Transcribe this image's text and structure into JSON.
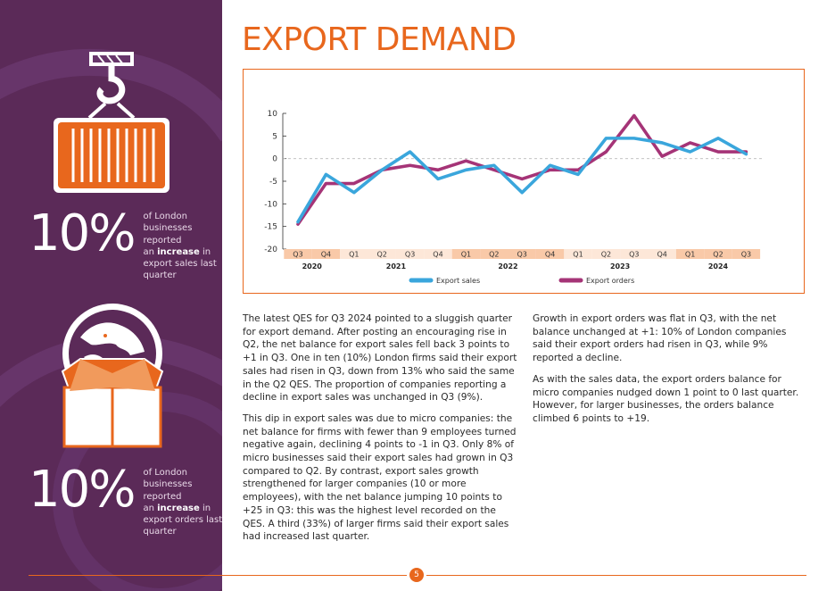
{
  "page": {
    "title": "EXPORT DEMAND",
    "page_number": "5"
  },
  "colors": {
    "accent": "#e8671d",
    "sidebar": "#5b2a58",
    "export_sales": "#3aa6dc",
    "export_orders": "#a53477"
  },
  "sidebar": {
    "stat1": {
      "value": "10%",
      "line1": "of London",
      "line2": "businesses reported",
      "line3_pre": "an ",
      "line3_bold": "increase",
      "line3_post": " in",
      "line4": "export sales last",
      "line5": "quarter",
      "icon": "shipping-container-icon"
    },
    "stat2": {
      "value": "10%",
      "line1": "of London",
      "line2": "businesses reported",
      "line3_pre": "an ",
      "line3_bold": "increase",
      "line3_post": " in",
      "line4": "export orders last",
      "line5": "quarter",
      "icon": "globe-box-icon"
    }
  },
  "chart_data": {
    "type": "line",
    "title": "",
    "xlabel": "",
    "ylabel": "",
    "ylim": [
      -20,
      10
    ],
    "yticks": [
      "10",
      "5",
      "0",
      "-5",
      "-10",
      "-15",
      "-20"
    ],
    "categories": [
      "Q3",
      "Q4",
      "Q1",
      "Q2",
      "Q3",
      "Q4",
      "Q1",
      "Q2",
      "Q3",
      "Q4",
      "Q1",
      "Q2",
      "Q3",
      "Q4",
      "Q1",
      "Q2",
      "Q3"
    ],
    "years": [
      {
        "label": "2020",
        "from": 0,
        "to": 1
      },
      {
        "label": "2021",
        "from": 2,
        "to": 5
      },
      {
        "label": "2022",
        "from": 6,
        "to": 9
      },
      {
        "label": "2023",
        "from": 10,
        "to": 13
      },
      {
        "label": "2024",
        "from": 14,
        "to": 16
      }
    ],
    "series": [
      {
        "name": "Export sales",
        "values": [
          -14,
          -3.5,
          -7.5,
          -2.5,
          1.5,
          -4.5,
          -2.5,
          -1.5,
          -7.5,
          -1.5,
          -3.5,
          4.5,
          4.5,
          3.5,
          1.5,
          4.5,
          1
        ]
      },
      {
        "name": "Export orders",
        "values": [
          -14.5,
          -5.5,
          -5.5,
          -2.5,
          -1.5,
          -2.5,
          -0.5,
          -2.5,
          -4.5,
          -2.5,
          -2.5,
          1.5,
          9.5,
          0.5,
          3.5,
          1.5,
          1.5
        ]
      }
    ],
    "legend_position": "bottom"
  },
  "body": {
    "col1_p1": "The latest QES for Q3 2024 pointed to a sluggish quarter for export demand. After posting an encouraging rise in Q2, the net balance for export sales fell back 3 points to +1 in Q3. One in ten (10%) London firms said their export sales had risen in Q3, down from 13% who said the same in the Q2 QES. The proportion of companies reporting a decline in export sales was unchanged in Q3 (9%).",
    "col1_p2": "This dip in export sales was due to micro companies: the net balance for firms with fewer than 9 employees turned negative again, declining 4 points to -1 in Q3. Only 8% of micro businesses said their export sales had grown in Q3 compared to Q2. By contrast, export sales growth strengthened for larger companies (10 or more employees), with the net balance jumping 10 points to +25 in Q3: this was the highest level recorded on the QES. A third (33%) of larger firms said their export sales had increased last quarter.",
    "col2_p1": "Growth in export orders was flat in Q3, with the net balance unchanged at +1: 10% of London companies said their export orders had risen in Q3, while 9% reported a decline.",
    "col2_p2": "As with the sales data, the export orders balance for micro companies nudged down 1 point to 0 last quarter. However, for larger businesses, the orders balance climbed 6 points to +19."
  }
}
